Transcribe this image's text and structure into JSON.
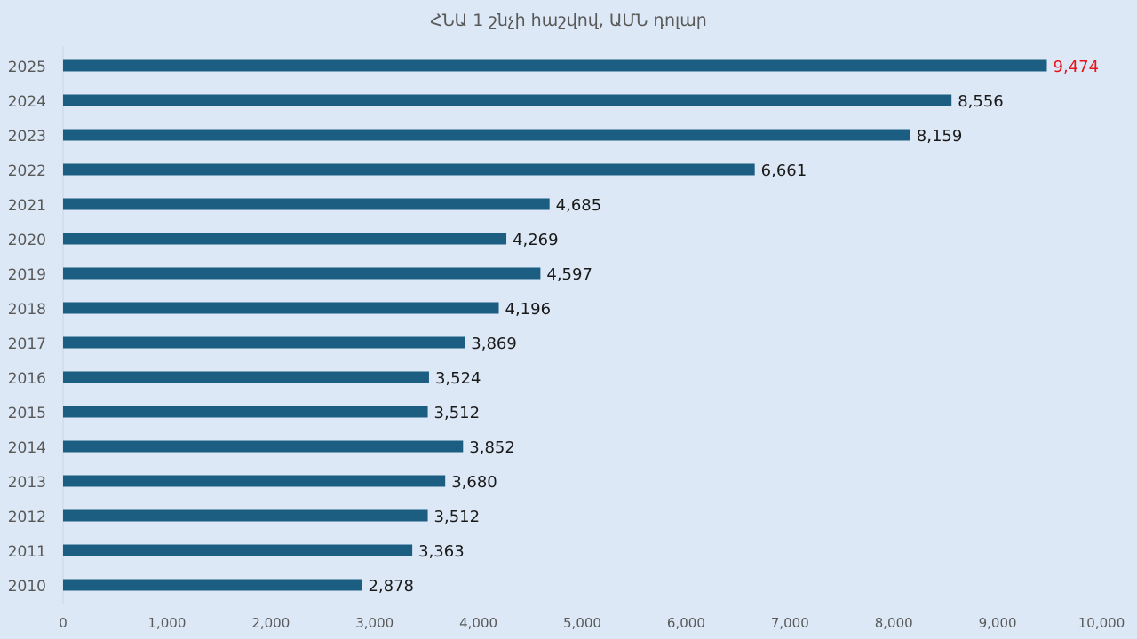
{
  "chart_data": {
    "type": "bar",
    "orientation": "horizontal",
    "title": "ՀՆԱ 1 շնչի հաշվով, ԱՄՆ դոլար",
    "categories": [
      "2025",
      "2024",
      "2023",
      "2022",
      "2021",
      "2020",
      "2019",
      "2018",
      "2017",
      "2016",
      "2015",
      "2014",
      "2013",
      "2012",
      "2011",
      "2010"
    ],
    "values": [
      9474,
      8556,
      8159,
      6661,
      4685,
      4269,
      4597,
      4196,
      3869,
      3524,
      3512,
      3852,
      3680,
      3512,
      3363,
      2878
    ],
    "value_labels": [
      "9,474",
      "8,556",
      "8,159",
      "6,661",
      "4,685",
      "4,269",
      "4,597",
      "4,196",
      "3,869",
      "3,524",
      "3,512",
      "3,852",
      "3,680",
      "3,512",
      "3,363",
      "2,878"
    ],
    "highlight_index": 0,
    "xlim": [
      0,
      10000
    ],
    "xticks": [
      0,
      1000,
      2000,
      3000,
      4000,
      5000,
      6000,
      7000,
      8000,
      9000,
      10000
    ],
    "xtick_labels": [
      "0",
      "1,000",
      "2,000",
      "3,000",
      "4,000",
      "5,000",
      "6,000",
      "7,000",
      "8,000",
      "9,000",
      "10,000"
    ],
    "grid": false,
    "colors": {
      "bar": "#1b5e82",
      "label": "#1a1a1a",
      "highlight_label": "#e8121b",
      "axis_text": "#595959",
      "background": "#dce8f5"
    }
  }
}
